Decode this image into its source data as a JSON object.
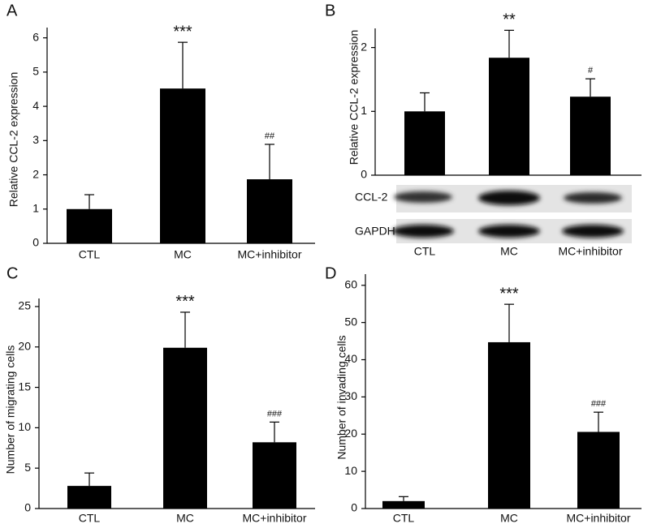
{
  "chart_data": [
    {
      "type": "bar",
      "panel_label": "A",
      "ylabel": "Relative CCL-2 expression",
      "categories": [
        "CTL",
        "MC",
        "MC+inhibitor"
      ],
      "values": [
        1.0,
        4.52,
        1.87
      ],
      "errors": [
        0.42,
        1.35,
        1.02
      ],
      "annotations": [
        null,
        "***",
        "##"
      ],
      "color": "#000000",
      "ylim": [
        0,
        6.3
      ],
      "yticks": [
        0,
        1,
        2,
        3,
        4,
        5,
        6
      ]
    },
    {
      "type": "bar",
      "panel_label": "B",
      "ylabel": "Relative CCL-2 expression",
      "categories": [
        "CTL",
        "MC",
        "MC+inhibitor"
      ],
      "values": [
        1.0,
        1.84,
        1.23
      ],
      "errors": [
        0.29,
        0.43,
        0.28
      ],
      "annotations": [
        null,
        "**",
        "#"
      ],
      "color": "#000000",
      "ylim": [
        0,
        2.3
      ],
      "yticks": [
        0,
        1,
        2
      ],
      "blot_labels": [
        "CCL-2",
        "GAPDH"
      ]
    },
    {
      "type": "bar",
      "panel_label": "C",
      "ylabel": "Number of migrating cells",
      "categories": [
        "CTL",
        "MC",
        "MC+inhibitor"
      ],
      "values": [
        2.8,
        19.9,
        8.2
      ],
      "errors": [
        1.6,
        4.4,
        2.5
      ],
      "annotations": [
        null,
        "***",
        "###"
      ],
      "color": "#000000",
      "ylim": [
        0,
        26
      ],
      "yticks": [
        0,
        5,
        10,
        15,
        20,
        25
      ]
    },
    {
      "type": "bar",
      "panel_label": "D",
      "ylabel": "Number of invading cells",
      "categories": [
        "CTL",
        "MC",
        "MC+inhibitor"
      ],
      "values": [
        2.0,
        44.7,
        20.6
      ],
      "errors": [
        1.2,
        10.2,
        5.3
      ],
      "annotations": [
        null,
        "***",
        "###"
      ],
      "color": "#000000",
      "ylim": [
        0,
        63
      ],
      "yticks": [
        0,
        10,
        20,
        30,
        40,
        50,
        60
      ]
    }
  ]
}
